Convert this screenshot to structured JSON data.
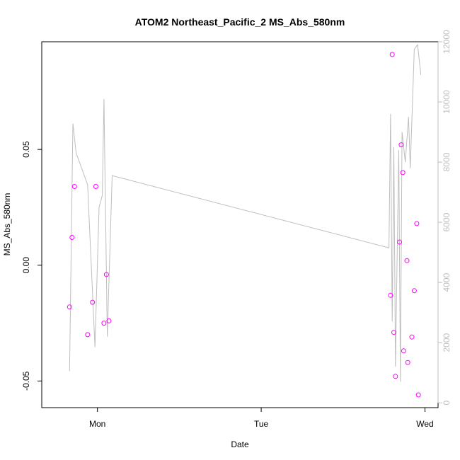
{
  "chart_data": {
    "type": "scatter",
    "title": "ATOM2 Northeast_Pacific_2 MS_Abs_580nm",
    "xlabel": "Date",
    "ylabel": "MS_Abs_580nm",
    "x_ticks": [
      {
        "label": "Mon",
        "day": 1.0
      },
      {
        "label": "Tue",
        "day": 2.0
      },
      {
        "label": "Wed",
        "day": 3.0
      }
    ],
    "y_ticks": [
      -0.05,
      0.0,
      0.05
    ],
    "y_tick_labels": [
      "-0.05",
      "0.00",
      "0.05"
    ],
    "y2_ticks": [
      0,
      2000,
      4000,
      6000,
      8000,
      10000,
      12000
    ],
    "y2_tick_labels": [
      "0",
      "2000",
      "4000",
      "6000",
      "8000",
      "10000",
      "12000"
    ],
    "xlim_day": [
      0.66,
      3.08
    ],
    "ylim": [
      -0.0615,
      0.0965
    ],
    "y2lim": [
      -160,
      12000
    ],
    "grid": false,
    "series": [
      {
        "kind": "points",
        "color": "#ff00ff",
        "points": [
          {
            "day": 0.83,
            "y": -0.018
          },
          {
            "day": 0.845,
            "y": 0.012
          },
          {
            "day": 0.86,
            "y": 0.034
          },
          {
            "day": 0.94,
            "y": -0.03
          },
          {
            "day": 0.97,
            "y": -0.016
          },
          {
            "day": 0.99,
            "y": 0.034
          },
          {
            "day": 1.04,
            "y": -0.025
          },
          {
            "day": 1.055,
            "y": -0.004
          },
          {
            "day": 1.07,
            "y": -0.024
          },
          {
            "day": 2.79,
            "y": -0.013
          },
          {
            "day": 2.8,
            "y": 0.091
          },
          {
            "day": 2.81,
            "y": -0.029
          },
          {
            "day": 2.82,
            "y": -0.048
          },
          {
            "day": 2.845,
            "y": 0.01
          },
          {
            "day": 2.855,
            "y": 0.052
          },
          {
            "day": 2.865,
            "y": 0.04
          },
          {
            "day": 2.87,
            "y": -0.037
          },
          {
            "day": 2.89,
            "y": 0.002
          },
          {
            "day": 2.895,
            "y": -0.042
          },
          {
            "day": 2.92,
            "y": -0.031
          },
          {
            "day": 2.935,
            "y": -0.011
          },
          {
            "day": 2.95,
            "y": 0.018
          },
          {
            "day": 2.96,
            "y": -0.056
          }
        ]
      },
      {
        "kind": "line",
        "color": "#bebebe",
        "axis": "right",
        "points": [
          {
            "day": 0.83,
            "y": 1050
          },
          {
            "day": 0.85,
            "y": 9280
          },
          {
            "day": 0.87,
            "y": 8300
          },
          {
            "day": 0.94,
            "y": 7250
          },
          {
            "day": 0.985,
            "y": 1850
          },
          {
            "day": 1.01,
            "y": 6500
          },
          {
            "day": 1.03,
            "y": 6900
          },
          {
            "day": 1.04,
            "y": 10100
          },
          {
            "day": 1.06,
            "y": 2200
          },
          {
            "day": 1.09,
            "y": 7550
          },
          {
            "day": 2.78,
            "y": 5150
          },
          {
            "day": 2.79,
            "y": 9600
          },
          {
            "day": 2.8,
            "y": 2700
          },
          {
            "day": 2.81,
            "y": 8500
          },
          {
            "day": 2.82,
            "y": 1200
          },
          {
            "day": 2.84,
            "y": 8400
          },
          {
            "day": 2.85,
            "y": 700
          },
          {
            "day": 2.86,
            "y": 9000
          },
          {
            "day": 2.88,
            "y": 8000
          },
          {
            "day": 2.9,
            "y": 9500
          },
          {
            "day": 2.91,
            "y": 7800
          },
          {
            "day": 2.935,
            "y": 11750
          },
          {
            "day": 2.955,
            "y": 11900
          },
          {
            "day": 2.975,
            "y": 10900
          }
        ]
      }
    ]
  }
}
